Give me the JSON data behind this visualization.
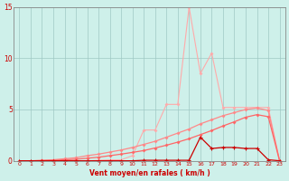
{
  "x": [
    0,
    1,
    2,
    3,
    4,
    5,
    6,
    7,
    8,
    9,
    10,
    11,
    12,
    13,
    14,
    15,
    16,
    17,
    18,
    19,
    20,
    21,
    22,
    23
  ],
  "line_spiky": [
    0.0,
    0.0,
    0.0,
    0.0,
    0.0,
    0.0,
    0.0,
    0.05,
    0.1,
    0.1,
    0.5,
    3.0,
    3.0,
    5.5,
    5.5,
    15.0,
    8.5,
    10.5,
    5.2,
    5.2,
    5.2,
    5.2,
    5.2,
    0.0
  ],
  "line_smooth1": [
    0.0,
    0.0,
    0.05,
    0.1,
    0.2,
    0.3,
    0.5,
    0.65,
    0.85,
    1.05,
    1.3,
    1.6,
    1.9,
    2.3,
    2.7,
    3.1,
    3.6,
    4.0,
    4.4,
    4.7,
    5.0,
    5.15,
    4.9,
    0.0
  ],
  "line_smooth2": [
    0.0,
    0.0,
    0.02,
    0.05,
    0.1,
    0.15,
    0.25,
    0.35,
    0.5,
    0.65,
    0.82,
    1.0,
    1.25,
    1.52,
    1.82,
    2.15,
    2.55,
    2.95,
    3.4,
    3.8,
    4.25,
    4.5,
    4.3,
    0.0
  ],
  "line_low": [
    0.0,
    0.0,
    0.0,
    0.0,
    0.0,
    0.0,
    0.0,
    0.0,
    0.0,
    0.0,
    0.0,
    0.05,
    0.05,
    0.05,
    0.05,
    0.05,
    2.3,
    1.2,
    1.3,
    1.3,
    1.2,
    1.2,
    0.1,
    0.0
  ],
  "bg_color": "#cef0ea",
  "grid_color": "#a0c8c4",
  "line_spiky_color": "#ffaaaa",
  "line_smooth1_color": "#ff8888",
  "line_smooth2_color": "#ff6666",
  "line_low_color": "#cc0000",
  "xlabel": "Vent moyen/en rafales ( km/h )",
  "ylim": [
    0,
    15
  ],
  "xlim_min": -0.5,
  "xlim_max": 23.5,
  "yticks": [
    0,
    5,
    10,
    15
  ],
  "xticks": [
    0,
    1,
    2,
    3,
    4,
    5,
    6,
    7,
    8,
    9,
    10,
    11,
    12,
    13,
    14,
    15,
    16,
    17,
    18,
    19,
    20,
    21,
    22,
    23
  ],
  "tick_color": "#cc0000",
  "label_color": "#cc0000",
  "spine_color": "#888888"
}
